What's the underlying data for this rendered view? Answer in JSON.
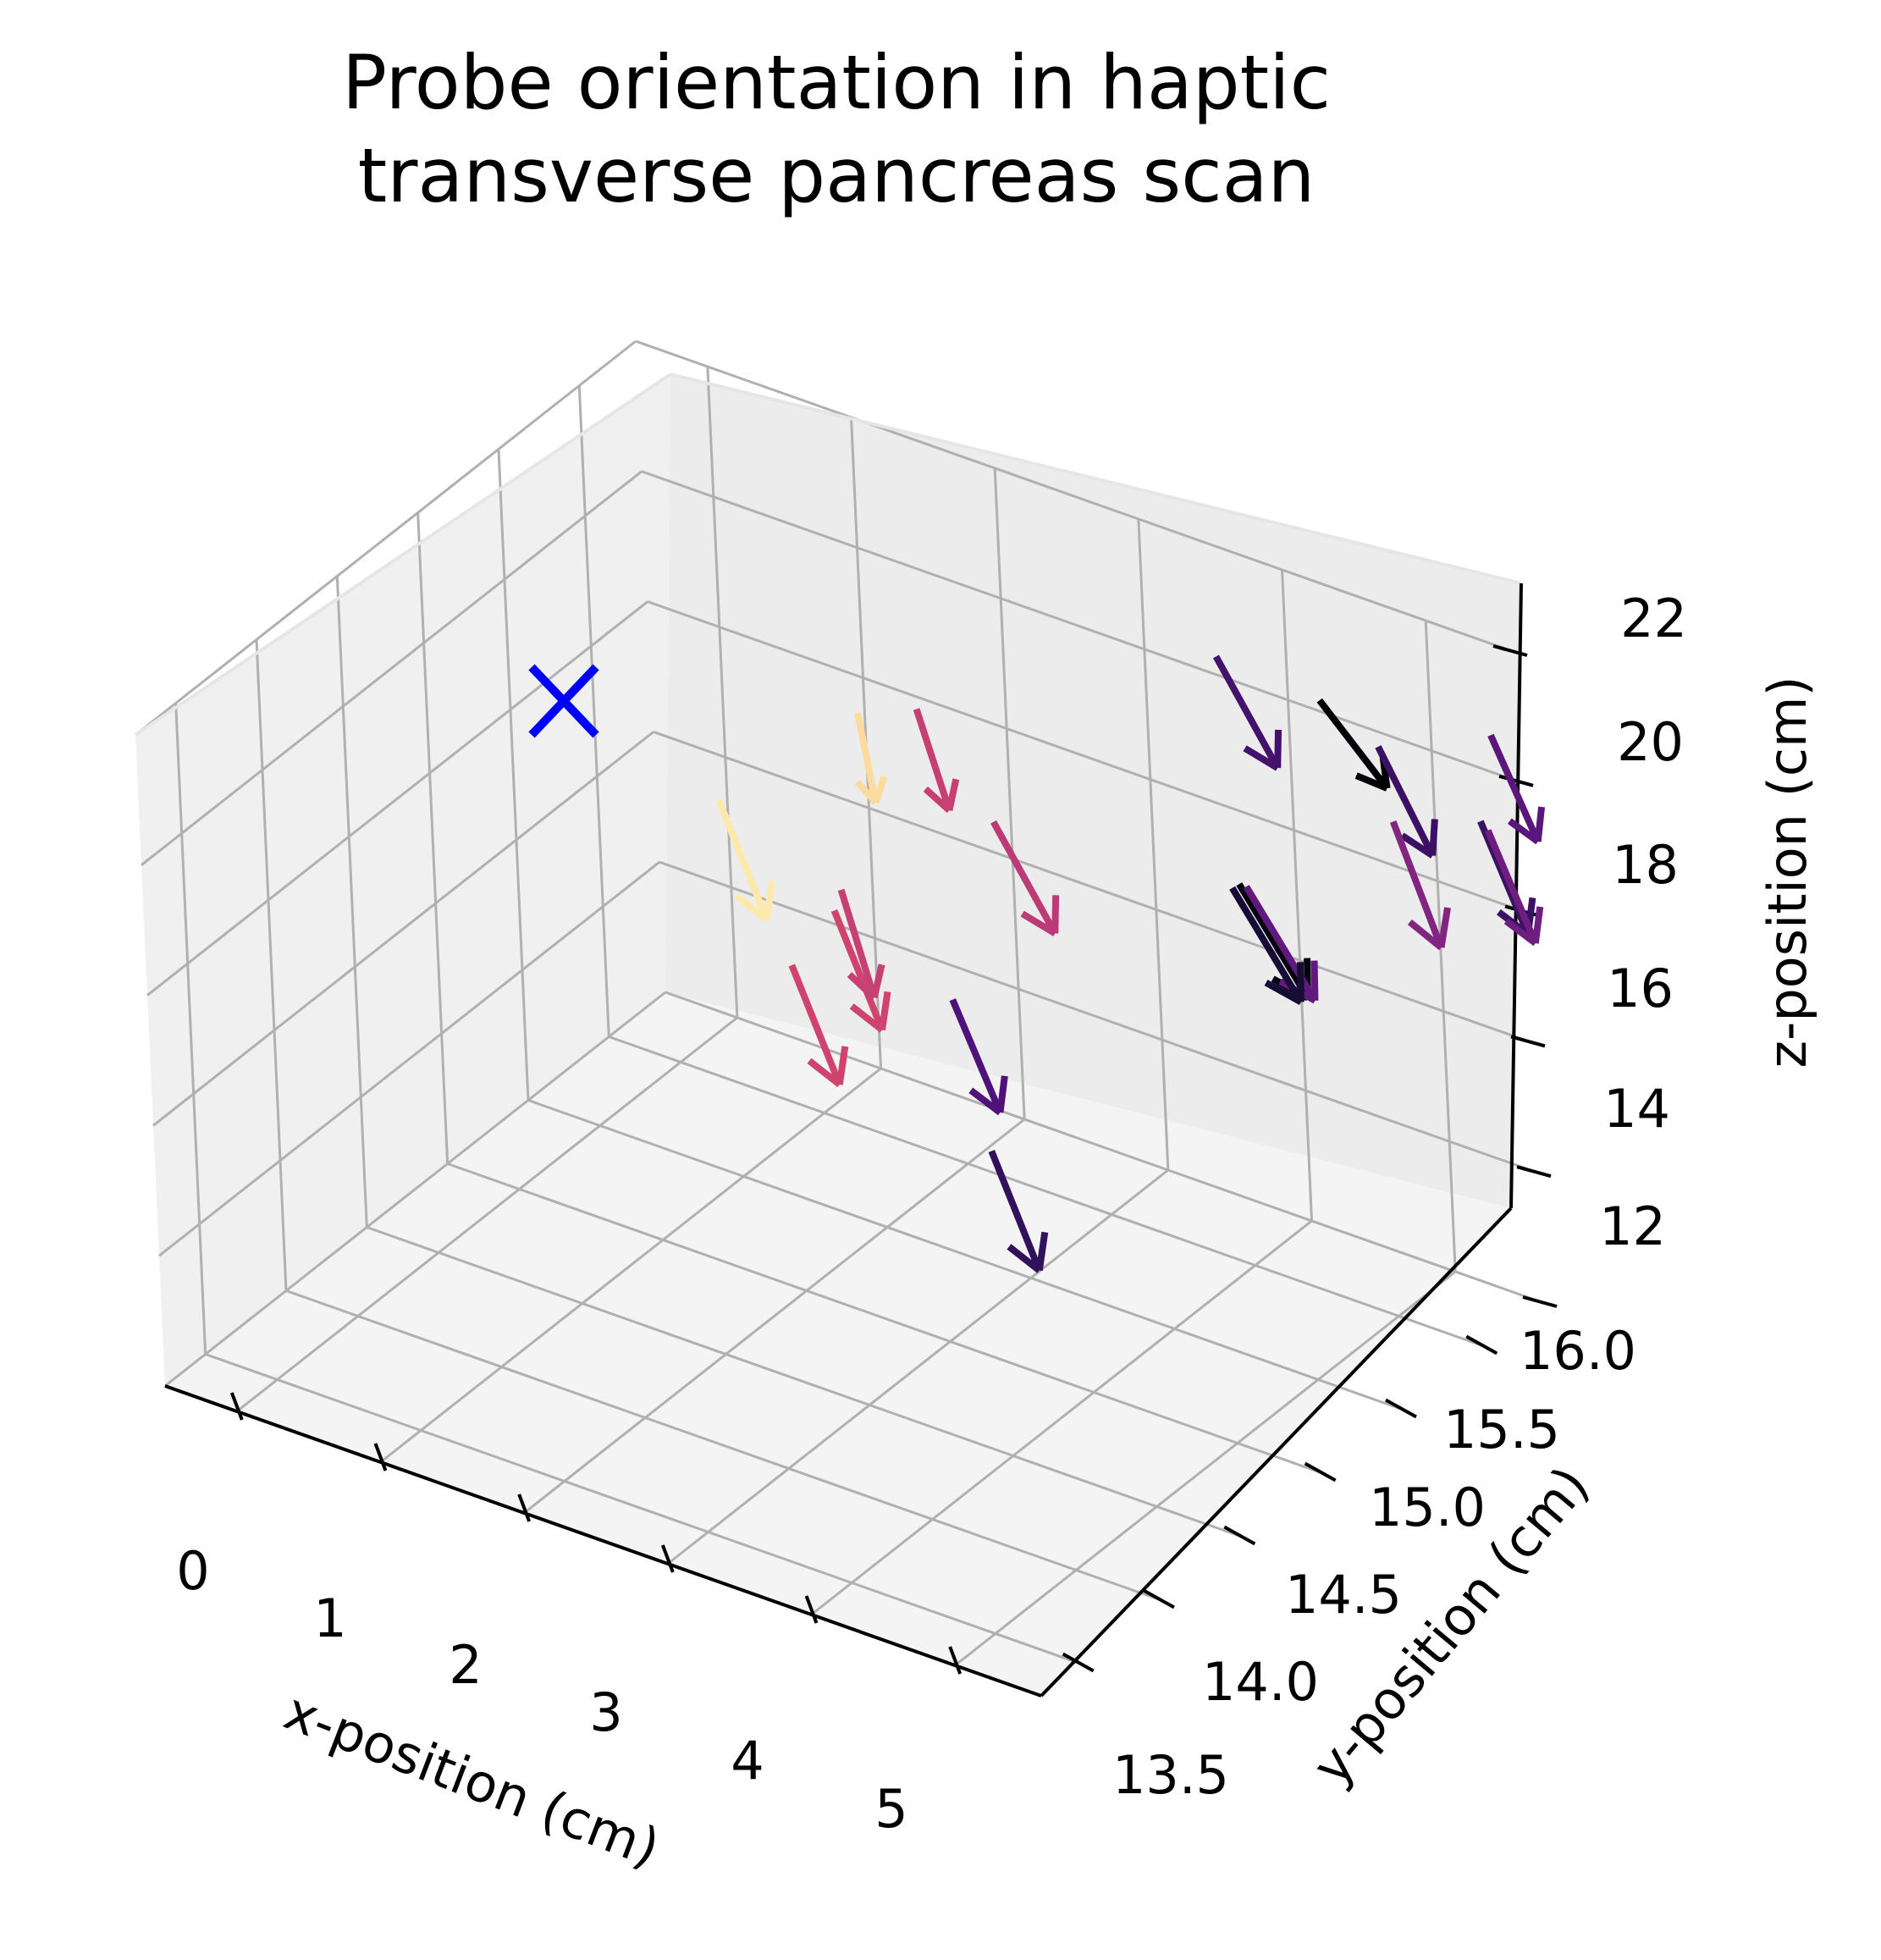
{
  "chart_data": {
    "type": "quiver3d",
    "title": [
      "Probe orientation in haptic",
      "transverse pancreas scan"
    ],
    "xlabel": "x-position (cm)",
    "ylabel": "y-position (cm)",
    "zlabel": "z-position (cm)",
    "xlim": [
      -0.5,
      5.6
    ],
    "ylim": [
      13.25,
      16.35
    ],
    "zlim": [
      12,
      22
    ],
    "xticks": [
      "0",
      "1",
      "2",
      "3",
      "4",
      "5"
    ],
    "yticks": [
      "13.5",
      "14.0",
      "14.5",
      "15.0",
      "15.5",
      "16.0"
    ],
    "zticks": [
      "12",
      "14",
      "16",
      "18",
      "20",
      "22"
    ],
    "grid": true,
    "colormap": "magma",
    "target_marker": {
      "symbol": "X",
      "color": "#0000ff"
    },
    "series": [
      {
        "values": [
          {
            "x": 1.9,
            "y": 15.9,
            "z": 19.1,
            "u": 0.2,
            "v": 0.0,
            "w": -1.4,
            "c": 0.55
          },
          {
            "x": 1.6,
            "y": 15.8,
            "z": 19.0,
            "u": 0.1,
            "v": 0.0,
            "w": -1.3,
            "c": 0.93
          },
          {
            "x": 1.3,
            "y": 15.2,
            "z": 18.6,
            "u": 0.3,
            "v": 0.0,
            "w": -1.6,
            "c": 0.96
          },
          {
            "x": 2.2,
            "y": 15.1,
            "z": 17.8,
            "u": 0.3,
            "v": 0.0,
            "w": -1.6,
            "c": 0.57
          },
          {
            "x": 1.9,
            "y": 15.4,
            "z": 17.3,
            "u": 0.2,
            "v": 0.0,
            "w": -1.5,
            "c": 0.55
          },
          {
            "x": 2.0,
            "y": 15.0,
            "z": 17.0,
            "u": 0.3,
            "v": 0.0,
            "w": -1.6,
            "c": 0.57
          },
          {
            "x": 3.0,
            "y": 15.4,
            "z": 19.2,
            "u": 0.4,
            "v": 0.0,
            "w": -1.4,
            "c": 0.52
          },
          {
            "x": 3.6,
            "y": 14.6,
            "z": 18.5,
            "u": 0.3,
            "v": 0.0,
            "w": -1.5,
            "c": 0.25
          },
          {
            "x": 4.3,
            "y": 14.2,
            "z": 17.5,
            "u": 0.3,
            "v": 0.0,
            "w": -1.6,
            "c": 0.18
          },
          {
            "x": 4.6,
            "y": 15.5,
            "z": 19.3,
            "u": 0.45,
            "v": 0.0,
            "w": -1.4,
            "c": 0.02
          },
          {
            "x": 4.65,
            "y": 15.5,
            "z": 19.3,
            "u": 0.45,
            "v": 0.0,
            "w": -1.4,
            "c": 0.3
          },
          {
            "x": 4.55,
            "y": 15.5,
            "z": 19.2,
            "u": 0.45,
            "v": 0.0,
            "w": -1.4,
            "c": 0.1
          },
          {
            "x": 3.8,
            "y": 16.1,
            "z": 21.0,
            "u": 0.4,
            "v": 0.0,
            "w": -1.4,
            "c": 0.22
          },
          {
            "x": 4.4,
            "y": 16.2,
            "z": 20.6,
            "u": 0.45,
            "v": 0.0,
            "w": -1.0,
            "c": 0.0
          },
          {
            "x": 4.8,
            "y": 16.2,
            "z": 20.2,
            "u": 0.35,
            "v": 0.0,
            "w": -1.4,
            "c": 0.2
          },
          {
            "x": 5.0,
            "y": 16.1,
            "z": 19.4,
            "u": 0.3,
            "v": 0.0,
            "w": -1.7,
            "c": 0.38
          },
          {
            "x": 5.6,
            "y": 16.2,
            "z": 21.0,
            "u": 0.3,
            "v": 0.0,
            "w": -1.4,
            "c": 0.28
          },
          {
            "x": 5.5,
            "y": 16.2,
            "z": 19.6,
            "u": 0.3,
            "v": 0.0,
            "w": -1.5,
            "c": 0.2
          },
          {
            "x": 5.55,
            "y": 16.2,
            "z": 19.5,
            "u": 0.3,
            "v": 0.0,
            "w": -1.5,
            "c": 0.33
          }
        ]
      }
    ]
  }
}
